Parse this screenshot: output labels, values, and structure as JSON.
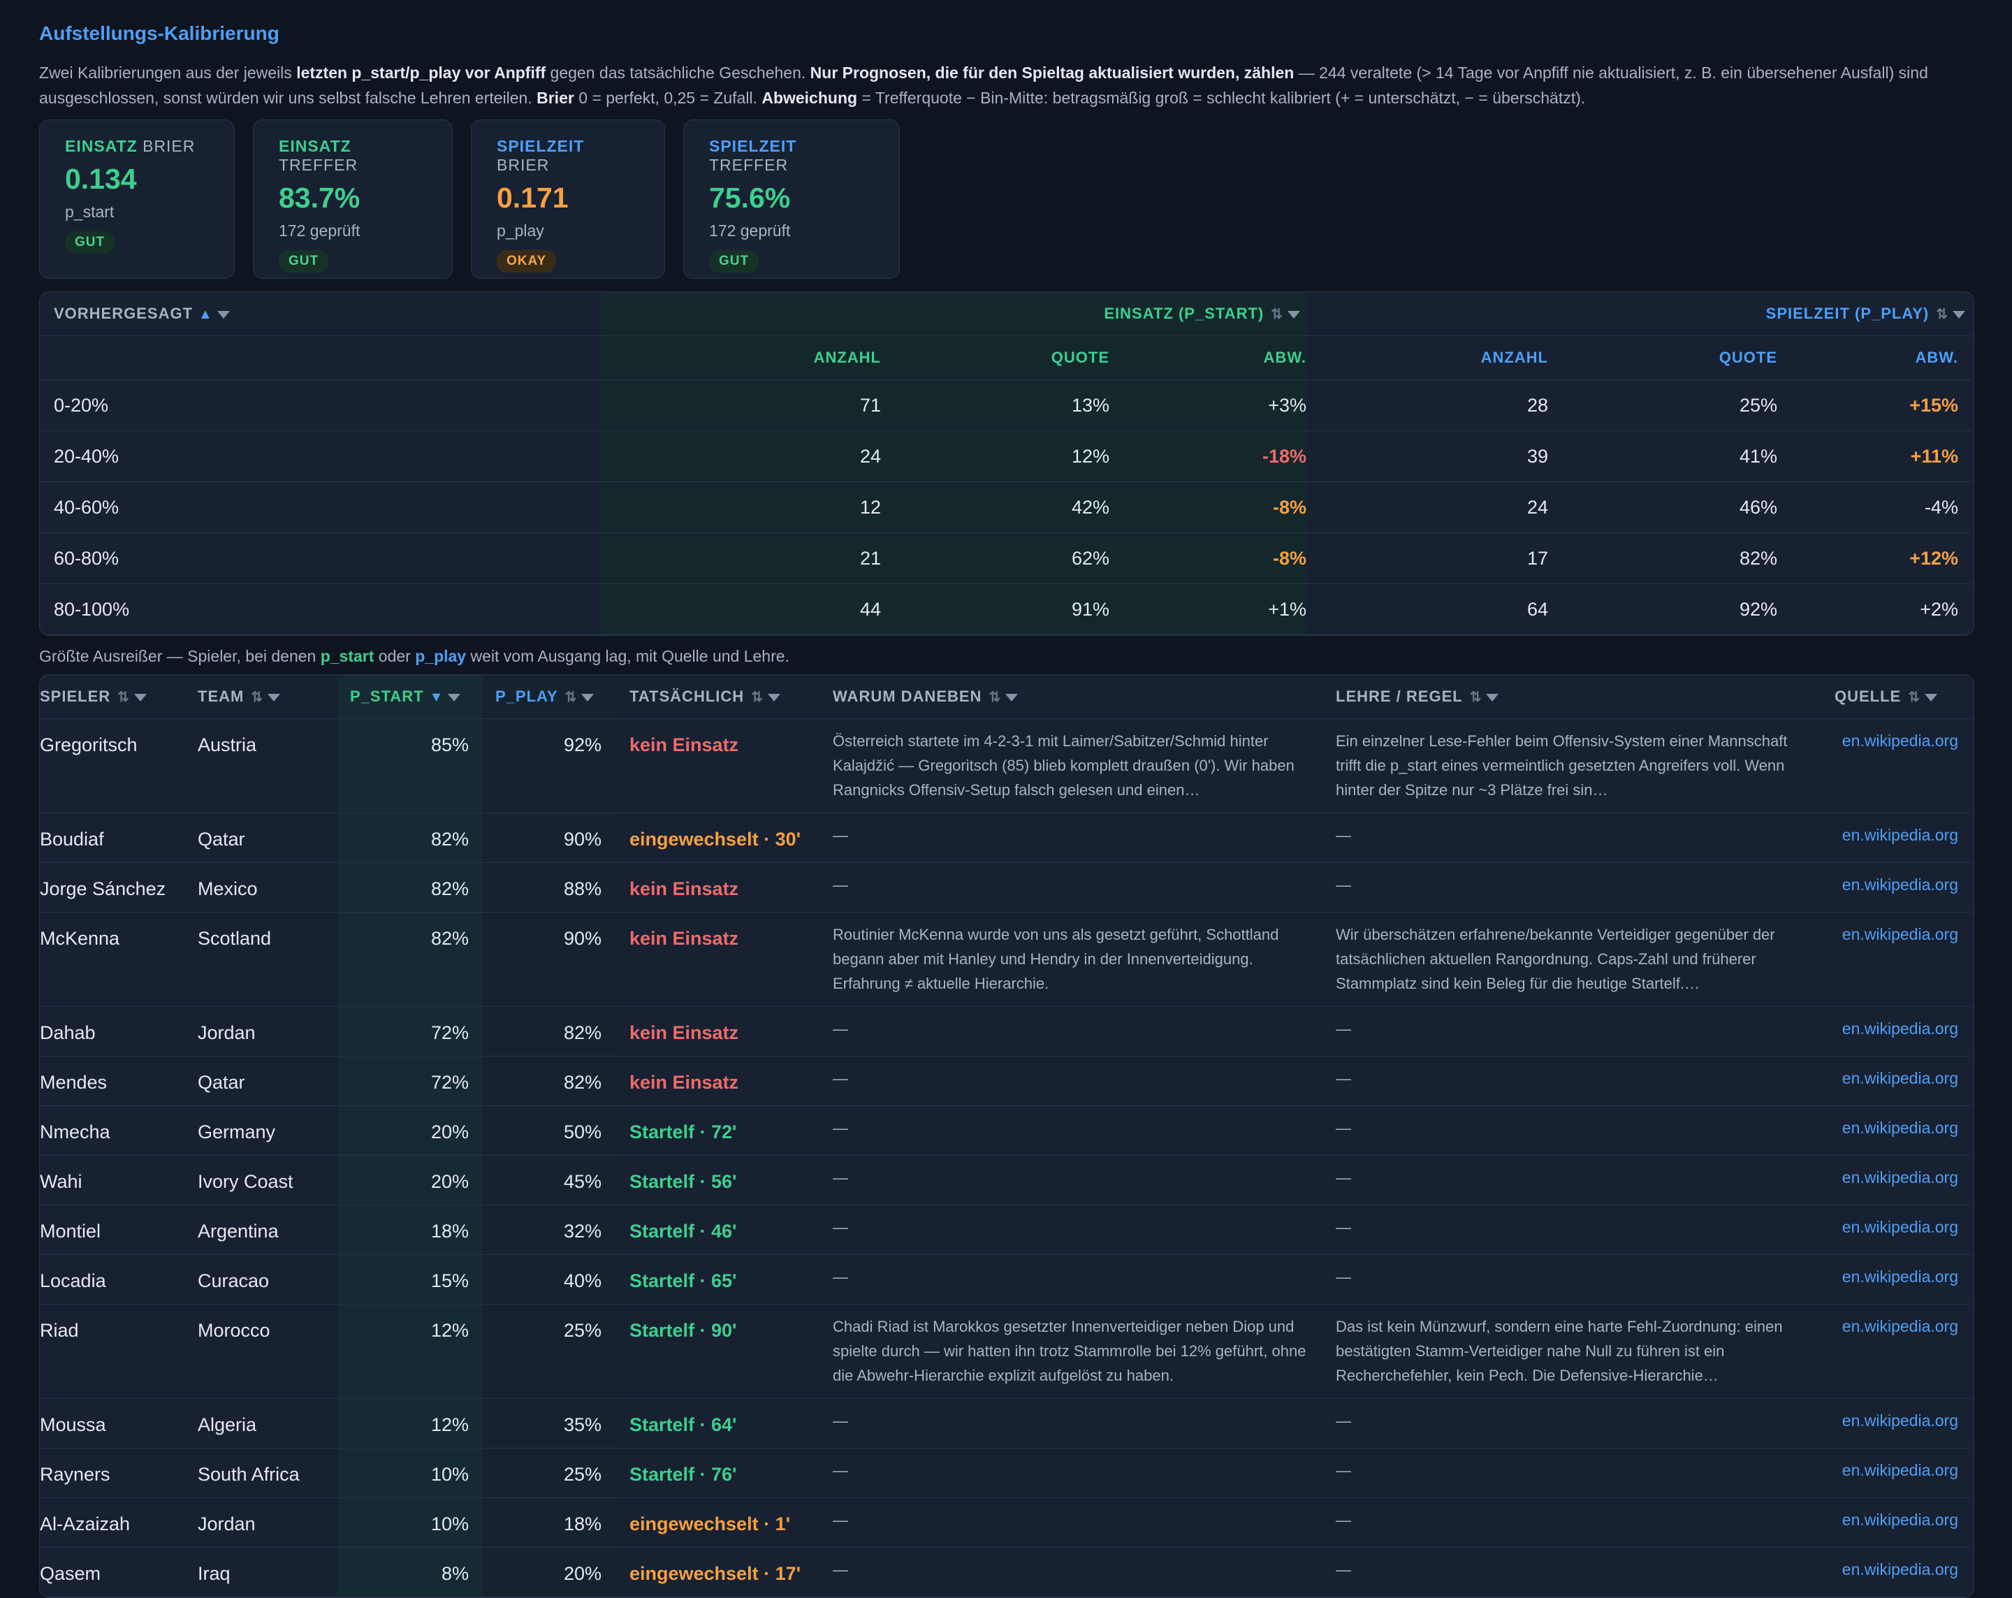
{
  "page": {
    "title": "Aufstellungs-Kalibrierung",
    "intro": {
      "p1": "Zwei Kalibrierungen aus der jeweils ",
      "b1": "letzten p_start/p_play vor Anpfiff",
      "p2": " gegen das tatsächliche Geschehen. ",
      "b2": "Nur Prognosen, die für den Spieltag aktualisiert wurden, zählen",
      "p3": " — 244 veraltete (> 14 Tage vor Anpfiff nie aktualisiert, z. B. ein übersehener Ausfall) sind ausgeschlossen, sonst würden wir uns selbst falsche Lehren erteilen. ",
      "b3": "Brier",
      "p4": " 0 = perfekt, 0,25 = Zufall. ",
      "b4": "Abweichung",
      "p5": " = Trefferquote − Bin-Mitte: betragsmäßig groß = schlecht kalibriert (+ = unterschätzt, − = überschätzt)."
    }
  },
  "kpis": [
    {
      "accent": "EINSATZ",
      "label": "BRIER",
      "value": "0.134",
      "sub": "p_start",
      "badge": "GUT",
      "accent_color": "#3ecf8e",
      "value_color": "#3ecf8e"
    },
    {
      "accent": "EINSATZ",
      "label": "TREFFER",
      "value": "83.7%",
      "sub": "172 geprüft",
      "badge": "GUT",
      "accent_color": "#3ecf8e",
      "value_color": "#3ecf8e"
    },
    {
      "accent": "SPIELZEIT",
      "label": "BRIER",
      "value": "0.171",
      "sub": "p_play",
      "badge": "OKAY",
      "accent_color": "#4f9ff5",
      "value_color": "#f6a043"
    },
    {
      "accent": "SPIELZEIT",
      "label": "TREFFER",
      "value": "75.6%",
      "sub": "172 geprüft",
      "badge": "GUT",
      "accent_color": "#4f9ff5",
      "value_color": "#3ecf8e"
    }
  ],
  "calibration": {
    "col_predicted": "VORHERGESAGT",
    "group_start": "EINSATZ (P_START)",
    "group_play": "SPIELZEIT (P_PLAY)",
    "sub_headers": [
      "ANZAHL",
      "QUOTE",
      "ABW."
    ],
    "rows": [
      {
        "bin": "0-20%",
        "s_n": "71",
        "s_q": "13%",
        "s_d": "+3%",
        "s_c": "white",
        "p_n": "28",
        "p_q": "25%",
        "p_d": "+15%",
        "p_c": "orange"
      },
      {
        "bin": "20-40%",
        "s_n": "24",
        "s_q": "12%",
        "s_d": "-18%",
        "s_c": "red",
        "p_n": "39",
        "p_q": "41%",
        "p_d": "+11%",
        "p_c": "orange"
      },
      {
        "bin": "40-60%",
        "s_n": "12",
        "s_q": "42%",
        "s_d": "-8%",
        "s_c": "orange",
        "p_n": "24",
        "p_q": "46%",
        "p_d": "-4%",
        "p_c": "white"
      },
      {
        "bin": "60-80%",
        "s_n": "21",
        "s_q": "62%",
        "s_d": "-8%",
        "s_c": "orange",
        "p_n": "17",
        "p_q": "82%",
        "p_d": "+12%",
        "p_c": "orange"
      },
      {
        "bin": "80-100%",
        "s_n": "44",
        "s_q": "91%",
        "s_d": "+1%",
        "s_c": "white",
        "p_n": "64",
        "p_q": "92%",
        "p_d": "+2%",
        "p_c": "white"
      }
    ]
  },
  "outliers_note": {
    "p1": "Größte Ausreißer — Spieler, bei denen ",
    "b1": "p_start",
    "p2": " oder ",
    "b2": "p_play",
    "p3": " weit vom Ausgang lag, mit Quelle und Lehre."
  },
  "outliers": {
    "headers": {
      "player": "SPIELER",
      "team": "TEAM",
      "p_start": "P_START",
      "p_play": "P_PLAY",
      "actual": "TATSÄCHLICH",
      "why": "WARUM DANEBEN",
      "lesson": "LEHRE / REGEL",
      "source": "QUELLE"
    },
    "rows": [
      {
        "player": "Gregoritsch",
        "team": "Austria",
        "p_start": "85%",
        "p_play": "92%",
        "actual": "kein Einsatz",
        "actual_c": "red",
        "why": "Österreich startete im 4-2-3-1 mit Laimer/Sabitzer/Schmid hinter Kalajdžić — Gregoritsch (85) blieb komplett draußen (0'). Wir haben Rangnicks Offensiv-Setup falsch gelesen und einen…",
        "lesson": "Ein einzelner Lese-Fehler beim Offensiv-System einer Mannschaft trifft die p_start eines vermeintlich gesetzten Angreifers voll. Wenn hinter der Spitze nur ~3 Plätze frei sin…",
        "source": "en.wikipedia.org"
      },
      {
        "player": "Boudiaf",
        "team": "Qatar",
        "p_start": "82%",
        "p_play": "90%",
        "actual": "eingewechselt · 30'",
        "actual_c": "orange",
        "why": "—",
        "lesson": "—",
        "source": "en.wikipedia.org"
      },
      {
        "player": "Jorge Sánchez",
        "team": "Mexico",
        "p_start": "82%",
        "p_play": "88%",
        "actual": "kein Einsatz",
        "actual_c": "red",
        "why": "—",
        "lesson": "—",
        "source": "en.wikipedia.org"
      },
      {
        "player": "McKenna",
        "team": "Scotland",
        "p_start": "82%",
        "p_play": "90%",
        "actual": "kein Einsatz",
        "actual_c": "red",
        "why": "Routinier McKenna wurde von uns als gesetzt geführt, Schottland begann aber mit Hanley und Hendry in der Innenverteidigung. Erfahrung ≠ aktuelle Hierarchie.",
        "lesson": "Wir überschätzen erfahrene/bekannte Verteidiger gegenüber der tatsächlichen aktuellen Rangordnung. Caps-Zahl und früherer Stammplatz sind kein Beleg für die heutige Startelf.…",
        "source": "en.wikipedia.org"
      },
      {
        "player": "Dahab",
        "team": "Jordan",
        "p_start": "72%",
        "p_play": "82%",
        "actual": "kein Einsatz",
        "actual_c": "red",
        "why": "—",
        "lesson": "—",
        "source": "en.wikipedia.org"
      },
      {
        "player": "Mendes",
        "team": "Qatar",
        "p_start": "72%",
        "p_play": "82%",
        "actual": "kein Einsatz",
        "actual_c": "red",
        "why": "—",
        "lesson": "—",
        "source": "en.wikipedia.org"
      },
      {
        "player": "Nmecha",
        "team": "Germany",
        "p_start": "20%",
        "p_play": "50%",
        "actual": "Startelf · 72'",
        "actual_c": "green",
        "why": "—",
        "lesson": "—",
        "source": "en.wikipedia.org"
      },
      {
        "player": "Wahi",
        "team": "Ivory Coast",
        "p_start": "20%",
        "p_play": "45%",
        "actual": "Startelf · 56'",
        "actual_c": "green",
        "why": "—",
        "lesson": "—",
        "source": "en.wikipedia.org"
      },
      {
        "player": "Montiel",
        "team": "Argentina",
        "p_start": "18%",
        "p_play": "32%",
        "actual": "Startelf · 46'",
        "actual_c": "green",
        "why": "—",
        "lesson": "—",
        "source": "en.wikipedia.org"
      },
      {
        "player": "Locadia",
        "team": "Curacao",
        "p_start": "15%",
        "p_play": "40%",
        "actual": "Startelf · 65'",
        "actual_c": "green",
        "why": "—",
        "lesson": "—",
        "source": "en.wikipedia.org"
      },
      {
        "player": "Riad",
        "team": "Morocco",
        "p_start": "12%",
        "p_play": "25%",
        "actual": "Startelf · 90'",
        "actual_c": "green",
        "why": "Chadi Riad ist Marokkos gesetzter Innenverteidiger neben Diop und spielte durch — wir hatten ihn trotz Stammrolle bei 12% geführt, ohne die Abwehr-Hierarchie explizit aufgelöst zu haben.",
        "lesson": "Das ist kein Münzwurf, sondern eine harte Fehl-Zuordnung: einen bestätigten Stamm-Verteidiger nahe Null zu führen ist ein Recherchefehler, kein Pech. Die Defensive-Hierarchie…",
        "source": "en.wikipedia.org"
      },
      {
        "player": "Moussa",
        "team": "Algeria",
        "p_start": "12%",
        "p_play": "35%",
        "actual": "Startelf · 64'",
        "actual_c": "green",
        "why": "—",
        "lesson": "—",
        "source": "en.wikipedia.org"
      },
      {
        "player": "Rayners",
        "team": "South Africa",
        "p_start": "10%",
        "p_play": "25%",
        "actual": "Startelf · 76'",
        "actual_c": "green",
        "why": "—",
        "lesson": "—",
        "source": "en.wikipedia.org"
      },
      {
        "player": "Al-Azaizah",
        "team": "Jordan",
        "p_start": "10%",
        "p_play": "18%",
        "actual": "eingewechselt · 1'",
        "actual_c": "orange",
        "why": "—",
        "lesson": "—",
        "source": "en.wikipedia.org"
      },
      {
        "player": "Qasem",
        "team": "Iraq",
        "p_start": "8%",
        "p_play": "20%",
        "actual": "eingewechselt · 17'",
        "actual_c": "orange",
        "why": "—",
        "lesson": "—",
        "source": "en.wikipedia.org"
      }
    ]
  }
}
